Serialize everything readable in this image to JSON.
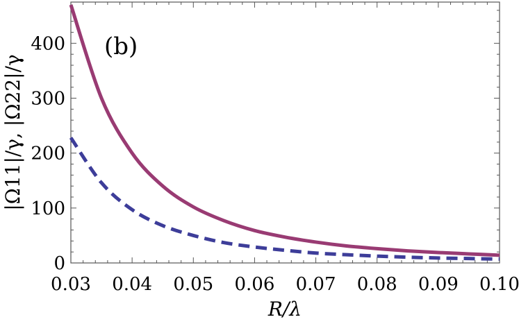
{
  "chart_data": {
    "type": "line",
    "panel_label": "(b)",
    "xlabel": "R/λ",
    "ylabel": "|Ω11|/γ, |Ω22|/γ",
    "xlim": [
      0.03,
      0.1
    ],
    "ylim": [
      0,
      475
    ],
    "x_ticks": [
      "0.03",
      "0.04",
      "0.05",
      "0.06",
      "0.07",
      "0.08",
      "0.09",
      "0.10"
    ],
    "y_ticks": [
      "0",
      "100",
      "200",
      "300",
      "400"
    ],
    "x": [
      0.03,
      0.035,
      0.04,
      0.045,
      0.05,
      0.055,
      0.06,
      0.065,
      0.07,
      0.075,
      0.08,
      0.085,
      0.09,
      0.095,
      0.1
    ],
    "series": [
      {
        "color": "#993b73",
        "style": "solid",
        "values": [
          470,
          300,
          200,
          140,
          102,
          77,
          59,
          47,
          38,
          31,
          26,
          22,
          19,
          16.5,
          14
        ]
      },
      {
        "color": "#3d3d99",
        "style": "dashed",
        "values": [
          228,
          146,
          97,
          68,
          50,
          37,
          29,
          23,
          18,
          15,
          12.5,
          10.5,
          9,
          8,
          7
        ]
      }
    ],
    "grid": false,
    "legend": "none"
  }
}
